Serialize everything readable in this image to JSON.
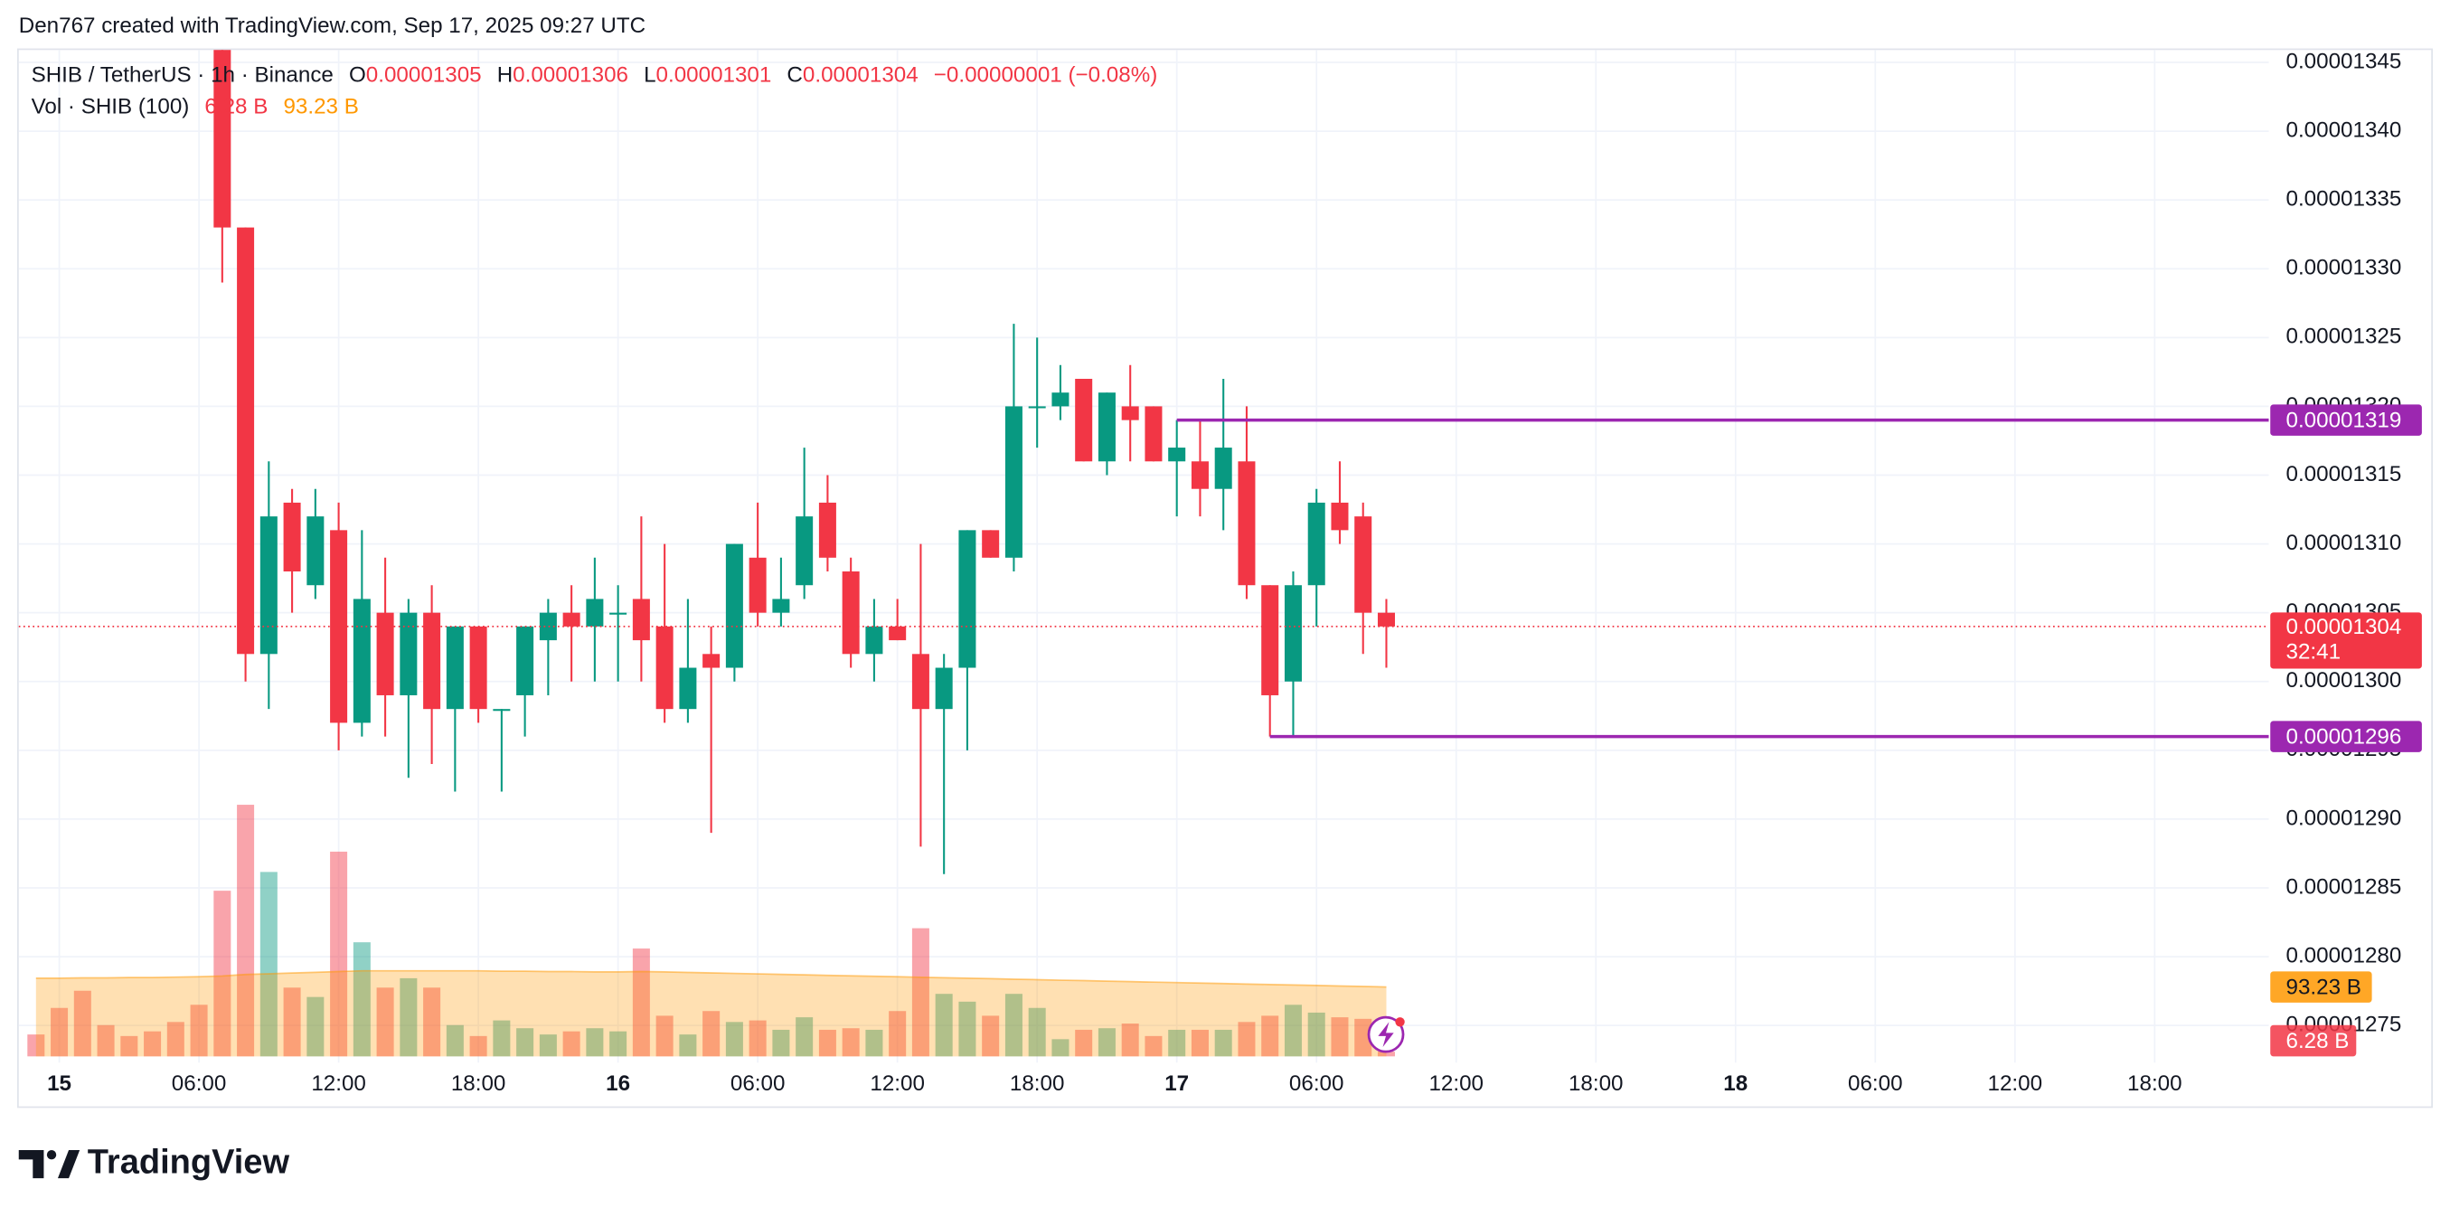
{
  "header": {
    "attribution": "Den767 created with TradingView.com, Sep 17, 2025 09:27 UTC",
    "symbol": "SHIB / TetherUS · 1h · Binance",
    "ohlc_labels": [
      "O",
      "H",
      "L",
      "C"
    ],
    "change": "−0.00000001 (−0.08%)",
    "volume_title": "Vol · SHIB (100)",
    "countdown": "32:41",
    "brand": "TradingView"
  },
  "chart_data": {
    "type": "candlestick",
    "up_color": "#089981",
    "down_color": "#f23645",
    "open": [
      null,
      null,
      null,
      null,
      null,
      null,
      null,
      null,
      1.35e-05,
      1.333e-05,
      1.302e-05,
      1.313e-05,
      1.307e-05,
      1.311e-05,
      1.297e-05,
      1.305e-05,
      1.299e-05,
      1.305e-05,
      1.298e-05,
      1.304e-05,
      1.298e-05,
      1.299e-05,
      1.303e-05,
      1.305e-05,
      1.304e-05,
      1.305e-05,
      1.306e-05,
      1.304e-05,
      1.298e-05,
      1.302e-05,
      1.301e-05,
      1.309e-05,
      1.305e-05,
      1.307e-05,
      1.313e-05,
      1.308e-05,
      1.302e-05,
      1.304e-05,
      1.302e-05,
      1.298e-05,
      1.301e-05,
      1.311e-05,
      1.309e-05,
      1.32e-05,
      1.32e-05,
      1.322e-05,
      1.316e-05,
      1.32e-05,
      1.32e-05,
      1.316e-05,
      1.316e-05,
      1.314e-05,
      1.316e-05,
      1.307e-05,
      1.3e-05,
      1.307e-05,
      1.313e-05,
      1.312e-05,
      1.305e-05
    ],
    "high": [
      null,
      null,
      null,
      null,
      null,
      null,
      null,
      null,
      1.352e-05,
      1.333e-05,
      1.316e-05,
      1.314e-05,
      1.314e-05,
      1.313e-05,
      1.311e-05,
      1.309e-05,
      1.306e-05,
      1.307e-05,
      1.304e-05,
      1.304e-05,
      1.298e-05,
      1.304e-05,
      1.306e-05,
      1.307e-05,
      1.309e-05,
      1.307e-05,
      1.312e-05,
      1.31e-05,
      1.306e-05,
      1.304e-05,
      1.31e-05,
      1.313e-05,
      1.309e-05,
      1.317e-05,
      1.315e-05,
      1.309e-05,
      1.306e-05,
      1.306e-05,
      1.31e-05,
      1.302e-05,
      1.311e-05,
      1.311e-05,
      1.326e-05,
      1.325e-05,
      1.323e-05,
      1.322e-05,
      1.321e-05,
      1.323e-05,
      1.32e-05,
      1.319e-05,
      1.319e-05,
      1.322e-05,
      1.32e-05,
      1.307e-05,
      1.308e-05,
      1.314e-05,
      1.316e-05,
      1.313e-05,
      1.306e-05
    ],
    "low": [
      null,
      null,
      null,
      null,
      null,
      null,
      null,
      null,
      1.329e-05,
      1.3e-05,
      1.298e-05,
      1.305e-05,
      1.306e-05,
      1.295e-05,
      1.296e-05,
      1.296e-05,
      1.293e-05,
      1.294e-05,
      1.292e-05,
      1.297e-05,
      1.292e-05,
      1.296e-05,
      1.299e-05,
      1.3e-05,
      1.3e-05,
      1.3e-05,
      1.3e-05,
      1.297e-05,
      1.297e-05,
      1.289e-05,
      1.3e-05,
      1.304e-05,
      1.304e-05,
      1.306e-05,
      1.308e-05,
      1.301e-05,
      1.3e-05,
      1.303e-05,
      1.288e-05,
      1.286e-05,
      1.295e-05,
      1.309e-05,
      1.308e-05,
      1.317e-05,
      1.319e-05,
      1.316e-05,
      1.315e-05,
      1.316e-05,
      1.316e-05,
      1.312e-05,
      1.312e-05,
      1.311e-05,
      1.306e-05,
      1.296e-05,
      1.296e-05,
      1.304e-05,
      1.31e-05,
      1.302e-05,
      1.301e-05
    ],
    "close": [
      null,
      null,
      null,
      null,
      null,
      null,
      null,
      null,
      1.333e-05,
      1.302e-05,
      1.312e-05,
      1.308e-05,
      1.312e-05,
      1.297e-05,
      1.306e-05,
      1.299e-05,
      1.305e-05,
      1.298e-05,
      1.304e-05,
      1.298e-05,
      1.298e-05,
      1.304e-05,
      1.305e-05,
      1.304e-05,
      1.306e-05,
      1.305e-05,
      1.303e-05,
      1.298e-05,
      1.301e-05,
      1.301e-05,
      1.31e-05,
      1.305e-05,
      1.306e-05,
      1.312e-05,
      1.309e-05,
      1.302e-05,
      1.304e-05,
      1.303e-05,
      1.298e-05,
      1.301e-05,
      1.311e-05,
      1.309e-05,
      1.32e-05,
      1.32e-05,
      1.321e-05,
      1.316e-05,
      1.321e-05,
      1.319e-05,
      1.316e-05,
      1.317e-05,
      1.314e-05,
      1.317e-05,
      1.307e-05,
      1.299e-05,
      1.307e-05,
      1.313e-05,
      1.311e-05,
      1.305e-05,
      1.304e-05
    ],
    "volume": {
      "color": "#f7a35c",
      "values": [
        29.4,
        65.1,
        88.2,
        42,
        27.3,
        33.6,
        46.2,
        69.3,
        222.6,
        338.1,
        247.8,
        92.4,
        79.8,
        275.1,
        153.3,
        92.4,
        105,
        92.4,
        42,
        27.3,
        48.3,
        37.8,
        29.4,
        33.6,
        37.8,
        33.6,
        144.9,
        54.6,
        29.4,
        60.9,
        46.2,
        48.3,
        35.7,
        52.5,
        35.7,
        37.8,
        35.7,
        60.9,
        172.2,
        84,
        73.5,
        54.6,
        84,
        65.1,
        23.1,
        35.7,
        37.8,
        44.1,
        27.3,
        35.7,
        35.7,
        35.7,
        46.2,
        54.6,
        69.3,
        58.8,
        52.5,
        50.4,
        6.28
      ],
      "last_label": "6.28 B"
    },
    "volume_ma": {
      "color": "#ff9800",
      "values": [
        105,
        105,
        105.5,
        105.5,
        106,
        106,
        106.5,
        107,
        108,
        110,
        111,
        112,
        113,
        114,
        115,
        115,
        115,
        115,
        115,
        115,
        114.5,
        114.5,
        114,
        114,
        113.5,
        113.5,
        114,
        113.5,
        112.8,
        112.2,
        111.5,
        110.9,
        110.2,
        109.6,
        108.9,
        108.3,
        107.6,
        107,
        106.3,
        105.7,
        105,
        104.4,
        103.7,
        103.1,
        102.4,
        101.8,
        101.1,
        100.5,
        99.8,
        99.2,
        98.5,
        97.9,
        97.2,
        96.6,
        95.9,
        95.3,
        94.6,
        94,
        93.23
      ],
      "last_label": "93.23 B"
    },
    "hlines": [
      {
        "value": 1.319e-05,
        "from": 49,
        "color": "#9c27b0"
      },
      {
        "value": 1.296e-05,
        "from": 53,
        "color": "#9c27b0"
      }
    ],
    "xlim": [
      -0.74,
      95.9
    ],
    "xticks": [
      {
        "value": 1,
        "label": "15"
      },
      {
        "value": 7,
        "label": "06:00"
      },
      {
        "value": 13,
        "label": "12:00"
      },
      {
        "value": 19,
        "label": "18:00"
      },
      {
        "value": 25,
        "label": "16"
      },
      {
        "value": 31,
        "label": "06:00"
      },
      {
        "value": 37,
        "label": "12:00"
      },
      {
        "value": 43,
        "label": "18:00"
      },
      {
        "value": 49,
        "label": "17"
      },
      {
        "value": 55,
        "label": "06:00"
      },
      {
        "value": 61,
        "label": "12:00"
      },
      {
        "value": 67,
        "label": "18:00"
      },
      {
        "value": 73,
        "label": "18"
      },
      {
        "value": 79,
        "label": "06:00"
      },
      {
        "value": 85,
        "label": "12:00"
      },
      {
        "value": 91,
        "label": "18:00"
      }
    ],
    "ylim": [
      1.2723e-05,
      1.3459e-05
    ],
    "yticks": [
      1.345e-05,
      {
        "value": 1.34e-05,
        "label": "0.00001340"
      },
      1.335e-05,
      {
        "value": 1.33e-05,
        "label": "0.00001330"
      },
      1.325e-05,
      {
        "value": 1.32e-05,
        "label": "0.00001320"
      },
      1.315e-05,
      {
        "value": 1.31e-05,
        "label": "0.00001310"
      },
      1.305e-05,
      {
        "value": 1.3e-05,
        "label": "0.00001300"
      },
      1.295e-05,
      {
        "value": 1.29e-05,
        "label": "0.00001290"
      },
      1.285e-05,
      {
        "value": 1.28e-05,
        "label": "0.00001280"
      },
      1.275e-05
    ],
    "grid": true
  }
}
